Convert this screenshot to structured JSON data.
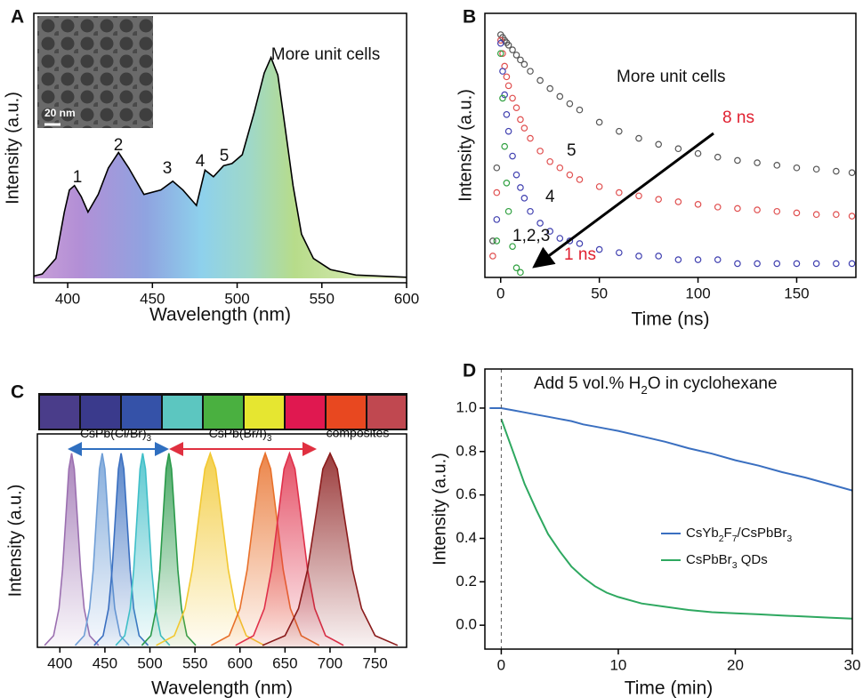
{
  "chart_data": [
    {
      "panel": "A",
      "type": "area",
      "color": "#000000",
      "x": [
        380,
        385,
        393,
        398,
        401,
        404,
        408,
        412,
        418,
        424,
        430,
        436,
        445,
        455,
        462,
        468,
        476,
        481,
        486,
        492,
        497,
        503,
        510,
        516,
        520,
        524,
        528,
        533,
        538,
        545,
        555,
        570,
        600
      ],
      "values": [
        0.01,
        0.02,
        0.09,
        0.3,
        0.4,
        0.42,
        0.37,
        0.3,
        0.38,
        0.5,
        0.57,
        0.5,
        0.38,
        0.4,
        0.44,
        0.4,
        0.33,
        0.49,
        0.46,
        0.51,
        0.52,
        0.56,
        0.75,
        0.93,
        1.0,
        0.92,
        0.7,
        0.42,
        0.2,
        0.09,
        0.04,
        0.015,
        0.005
      ],
      "xlim": [
        380,
        600
      ],
      "xticks": [
        400,
        450,
        500,
        550,
        600
      ],
      "ylim": [
        -0.02,
        1.2
      ],
      "xlabel": "Wavelength (nm)",
      "ylabel": "Intensity (a.u.)",
      "inset_label": "20 nm",
      "annotations": [
        {
          "text": "1"
        },
        {
          "text": "2"
        },
        {
          "text": "3"
        },
        {
          "text": "4"
        },
        {
          "text": "5"
        },
        {
          "text": "More unit cells"
        }
      ]
    },
    {
      "panel": "B",
      "type": "scatter",
      "log_y": true,
      "x": [
        -4,
        -2,
        0,
        1,
        2,
        3,
        4,
        6,
        8,
        10,
        12,
        15,
        20,
        25,
        30,
        35,
        40,
        50,
        60,
        70,
        80,
        90,
        100,
        110,
        120,
        130,
        140,
        150,
        160,
        170,
        178
      ],
      "series": [
        {
          "name": "More unit cells",
          "color": "#555555",
          "values": [
            0.02,
            0.08,
            1.0,
            0.95,
            0.9,
            0.86,
            0.82,
            0.75,
            0.68,
            0.62,
            0.57,
            0.5,
            0.42,
            0.36,
            0.31,
            0.27,
            0.24,
            0.19,
            0.16,
            0.14,
            0.125,
            0.115,
            0.105,
            0.098,
            0.092,
            0.088,
            0.084,
            0.08,
            0.078,
            0.075,
            0.073
          ]
        },
        {
          "name": "5",
          "color": "#e05050",
          "values": [
            0.015,
            0.05,
            0.9,
            0.7,
            0.55,
            0.45,
            0.38,
            0.3,
            0.25,
            0.2,
            0.17,
            0.14,
            0.11,
            0.09,
            0.08,
            0.07,
            0.064,
            0.056,
            0.05,
            0.047,
            0.044,
            0.042,
            0.04,
            0.038,
            0.037,
            0.036,
            0.035,
            0.034,
            0.033,
            0.033,
            0.032
          ]
        },
        {
          "name": "4",
          "color": "#4040b0",
          "values": [
            null,
            0.03,
            0.85,
            0.5,
            0.32,
            0.22,
            0.16,
            0.1,
            0.07,
            0.055,
            0.045,
            0.035,
            0.028,
            0.024,
            0.021,
            0.02,
            0.019,
            0.017,
            0.016,
            0.015,
            0.015,
            0.014,
            0.014,
            0.014,
            0.013,
            0.013,
            0.013,
            0.013,
            0.013,
            0.013,
            0.013
          ]
        },
        {
          "name": "1,2,3",
          "color": "#30a040",
          "values": [
            null,
            0.02,
            0.7,
            0.3,
            0.12,
            0.06,
            0.035,
            0.018,
            0.012,
            0.011,
            null,
            null,
            null,
            null,
            null,
            null,
            null,
            null,
            null,
            null,
            null,
            null,
            null,
            null,
            null,
            null,
            null,
            null,
            null,
            null,
            null
          ]
        }
      ],
      "xlim": [
        -8,
        180
      ],
      "xticks": [
        0,
        50,
        100,
        150
      ],
      "ylim": [
        0.01,
        1.5
      ],
      "xlabel": "Time (ns)",
      "ylabel": "Intensity (a.u.)",
      "annotations": [
        {
          "text": "8 ns",
          "color": "#e02030"
        },
        {
          "text": "1 ns",
          "color": "#e02030"
        }
      ]
    },
    {
      "panel": "C",
      "type": "area",
      "series": [
        {
          "color": "#9b6fb0",
          "x": [
            383,
            393,
            399,
            403,
            407,
            410,
            413,
            416,
            419,
            423,
            427,
            433,
            443
          ],
          "values": [
            0.01,
            0.06,
            0.2,
            0.4,
            0.7,
            0.92,
            1,
            0.92,
            0.7,
            0.4,
            0.2,
            0.06,
            0.01
          ]
        },
        {
          "color": "#6f9ed6",
          "x": [
            417,
            427,
            433,
            437,
            441,
            444,
            447,
            450,
            453,
            457,
            461,
            467,
            477
          ],
          "values": [
            0.01,
            0.06,
            0.2,
            0.4,
            0.7,
            0.92,
            1,
            0.92,
            0.7,
            0.4,
            0.2,
            0.06,
            0.01
          ]
        },
        {
          "color": "#3a6fc0",
          "x": [
            438,
            448,
            454,
            458,
            462,
            465,
            468,
            471,
            474,
            478,
            482,
            488,
            498
          ],
          "values": [
            0.01,
            0.06,
            0.2,
            0.4,
            0.7,
            0.92,
            1,
            0.92,
            0.7,
            0.4,
            0.2,
            0.06,
            0.01
          ]
        },
        {
          "color": "#3fbfc8",
          "x": [
            462,
            472,
            478,
            482,
            486,
            489,
            492,
            495,
            498,
            502,
            506,
            512,
            522
          ],
          "values": [
            0.01,
            0.06,
            0.2,
            0.4,
            0.7,
            0.92,
            1,
            0.92,
            0.7,
            0.4,
            0.2,
            0.06,
            0.01
          ]
        },
        {
          "color": "#2a9a4a",
          "x": [
            491,
            501,
            507,
            511,
            515,
            518,
            521,
            524,
            527,
            531,
            535,
            541,
            551
          ],
          "values": [
            0.01,
            0.06,
            0.2,
            0.4,
            0.7,
            0.92,
            1,
            0.92,
            0.7,
            0.4,
            0.2,
            0.06,
            0.01
          ]
        },
        {
          "color": "#f2c830",
          "x": [
            507,
            527,
            539,
            547,
            555,
            561,
            567,
            573,
            579,
            587,
            595,
            607,
            627
          ],
          "values": [
            0.01,
            0.06,
            0.2,
            0.4,
            0.7,
            0.92,
            1,
            0.92,
            0.7,
            0.4,
            0.2,
            0.06,
            0.01
          ]
        },
        {
          "color": "#e8702a",
          "x": [
            568,
            588,
            600,
            608,
            616,
            622,
            628,
            634,
            640,
            648,
            656,
            668,
            688
          ],
          "values": [
            0.01,
            0.06,
            0.2,
            0.4,
            0.7,
            0.92,
            1,
            0.92,
            0.7,
            0.4,
            0.2,
            0.06,
            0.01
          ]
        },
        {
          "color": "#e0304a",
          "x": [
            595,
            615,
            627,
            635,
            643,
            649,
            655,
            661,
            667,
            675,
            683,
            695,
            715
          ],
          "values": [
            0.01,
            0.06,
            0.2,
            0.4,
            0.7,
            0.92,
            1,
            0.92,
            0.7,
            0.4,
            0.2,
            0.06,
            0.01
          ]
        },
        {
          "color": "#8a1a1a",
          "x": [
            625,
            650,
            665,
            675,
            685,
            692,
            700,
            708,
            715,
            725,
            735,
            750,
            775
          ],
          "values": [
            0.01,
            0.06,
            0.2,
            0.4,
            0.7,
            0.92,
            1,
            0.92,
            0.7,
            0.4,
            0.2,
            0.06,
            0.01
          ]
        }
      ],
      "xlim": [
        375,
        785
      ],
      "xticks": [
        400,
        450,
        500,
        550,
        600,
        650,
        700,
        750
      ],
      "ylim": [
        0,
        1.1
      ],
      "xlabel": "Wavelength (nm)",
      "ylabel": "Intensity (a.u.)",
      "annotations": [
        {
          "text": "CsPb(Cl/Br)3"
        },
        {
          "text": "CsPb(Br/I)3"
        },
        {
          "text": "composites"
        }
      ]
    },
    {
      "panel": "D",
      "type": "line",
      "legend": "lower right",
      "vline": 0,
      "x": [
        -1,
        0,
        1,
        2,
        3,
        4,
        5,
        6,
        7,
        8,
        9,
        10,
        12,
        14,
        16,
        18,
        20,
        22,
        24,
        26,
        28,
        30
      ],
      "series": [
        {
          "name": "CsYb2F7/CsPbBr3",
          "color": "#3a6fc0",
          "values": [
            1.0,
            1.0,
            0.99,
            0.98,
            0.97,
            0.96,
            0.95,
            0.94,
            0.925,
            0.915,
            0.905,
            0.895,
            0.87,
            0.845,
            0.815,
            0.79,
            0.76,
            0.735,
            0.705,
            0.68,
            0.65,
            0.62
          ]
        },
        {
          "name": "CsPbBr3 QDs",
          "color": "#2ea860",
          "values": [
            null,
            0.95,
            0.8,
            0.65,
            0.53,
            0.42,
            0.34,
            0.27,
            0.22,
            0.18,
            0.15,
            0.13,
            0.1,
            0.085,
            0.07,
            0.06,
            0.055,
            0.05,
            0.045,
            0.04,
            0.035,
            0.03
          ]
        }
      ],
      "xlim": [
        -1.4,
        30
      ],
      "xticks": [
        0,
        10,
        20,
        30
      ],
      "ylim": [
        -0.11,
        1.18
      ],
      "yticks": [
        {
          "value": 0,
          "label": "0.0"
        },
        0.2,
        0.4,
        0.6,
        0.8,
        {
          "value": 1,
          "label": "1.0"
        }
      ],
      "xlabel": "Time (min)",
      "ylabel": "Intensity (a.u.)",
      "annotations": [
        {
          "text": "Add 5 vol.% H2O in cyclohexane"
        }
      ]
    }
  ]
}
